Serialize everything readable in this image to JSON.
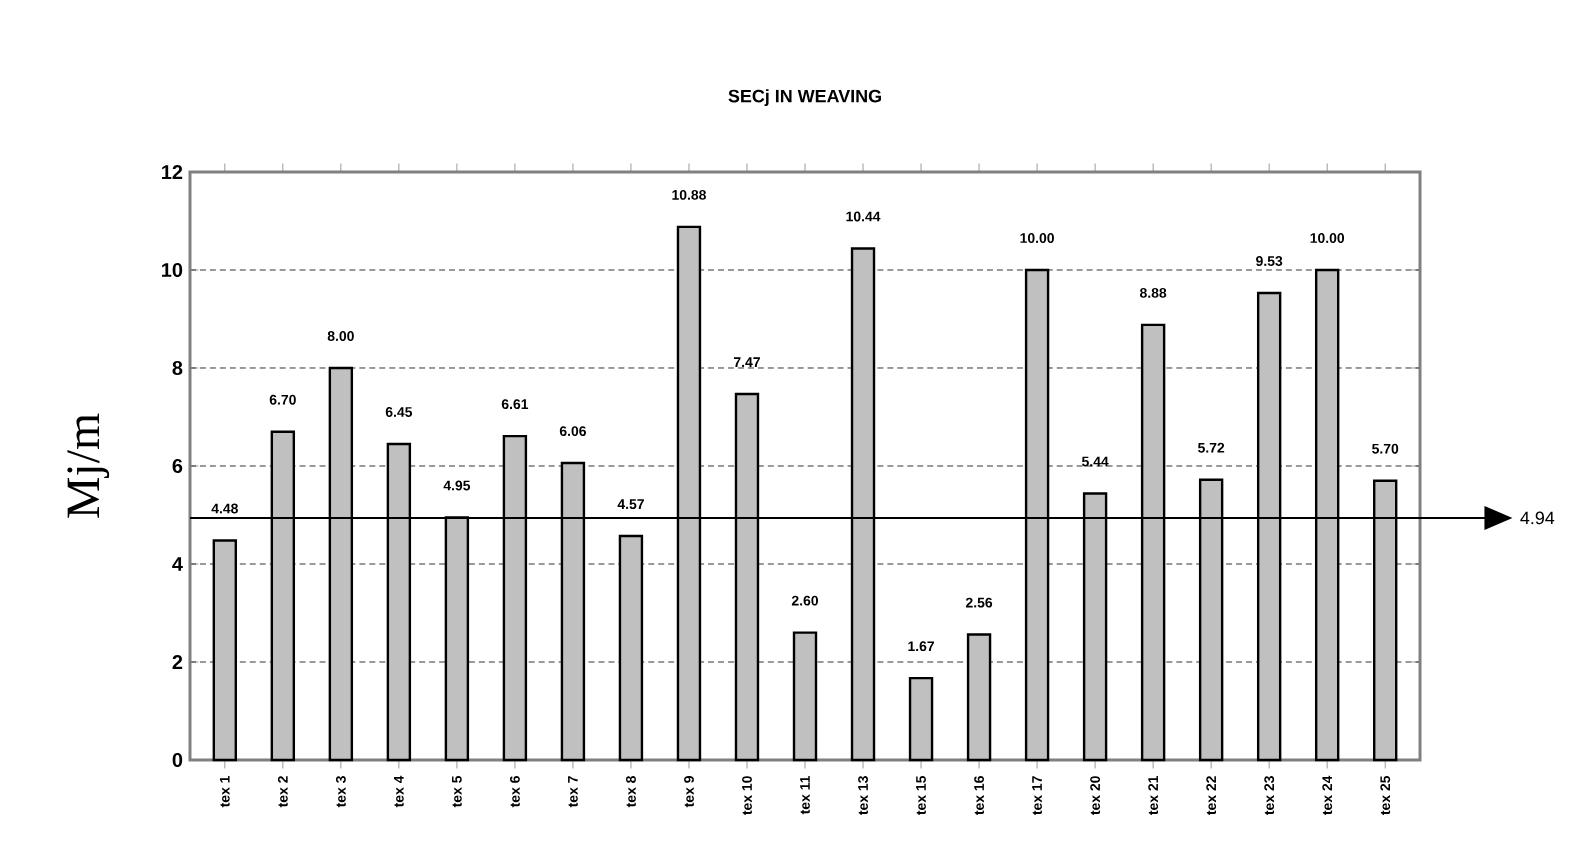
{
  "chart_data": {
    "type": "bar",
    "title": "SECj IN WEAVING",
    "ylabel": "Mj/m",
    "categories": [
      "tex 1",
      "tex 2",
      "tex 3",
      "tex 4",
      "tex 5",
      "tex 6",
      "tex 7",
      "tex 8",
      "tex 9",
      "tex 10",
      "tex 11",
      "tex 13",
      "tex 15",
      "tex 16",
      "tex 17",
      "tex 20",
      "tex 21",
      "tex 22",
      "tex 23",
      "tex 24",
      "tex 25"
    ],
    "values": [
      4.48,
      6.7,
      8.0,
      6.45,
      4.95,
      6.61,
      6.06,
      4.57,
      10.88,
      7.47,
      2.6,
      10.44,
      1.67,
      2.56,
      10.0,
      5.44,
      8.88,
      5.72,
      9.53,
      10.0,
      5.7
    ],
    "value_labels": [
      "4.48",
      "6.70",
      "8.00",
      "6.45",
      "4.95",
      "6.61",
      "6.06",
      "4.57",
      "10.88",
      "7.47",
      "2.60",
      "10.44",
      "1.67",
      "2.56",
      "10.00",
      "5.44",
      "8.88",
      "5.72",
      "9.53",
      "10.00",
      "5.70"
    ],
    "color": "#c0c0c0",
    "ylim": [
      0,
      12
    ],
    "yticks": [
      0,
      2,
      4,
      6,
      8,
      10,
      12
    ],
    "grid": "y",
    "ref_lines": [
      {
        "axis": "y",
        "value": 4.94,
        "label": "4.94"
      }
    ]
  }
}
